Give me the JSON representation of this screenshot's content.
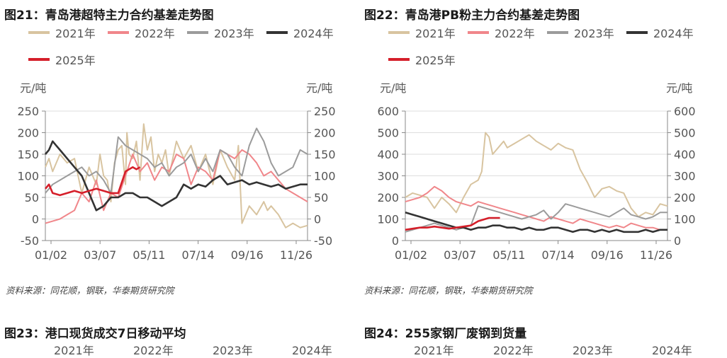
{
  "figures": [
    {
      "title": "图21：青岛港超特主力合约基差走势图",
      "source": "资料来源：同花顺，钢联，华泰期货研究院"
    },
    {
      "title": "图22：青岛港PB粉主力合约基差走势图",
      "source": "资料来源：同花顺，钢联，华泰期货研究院"
    },
    {
      "title": "图23：港口现货成交7日移动平均",
      "source": ""
    },
    {
      "title": "图24：255家钢厂废钢到货量",
      "source": ""
    }
  ],
  "bottom_legend": [
    "2021年",
    "2022年",
    "2023年",
    "2024年"
  ],
  "chart_data": [
    {
      "type": "line",
      "unit_left": "元/吨",
      "unit_right": "元/吨",
      "x_ticks": [
        "01/02",
        "03/07",
        "05/11",
        "07/14",
        "09/16",
        "11/26"
      ],
      "x_range": [
        0,
        360
      ],
      "ylim": [
        -50,
        250
      ],
      "y_ticks": [
        -50,
        0,
        50,
        100,
        150,
        200,
        250
      ],
      "grid": true,
      "legend_position": "top",
      "series": [
        {
          "name": "2021年",
          "color": "#d8c4a0",
          "x": [
            0,
            5,
            10,
            20,
            30,
            40,
            50,
            60,
            70,
            75,
            80,
            85,
            90,
            95,
            100,
            105,
            110,
            112,
            115,
            120,
            125,
            130,
            135,
            140,
            145,
            150,
            155,
            160,
            165,
            170,
            180,
            190,
            200,
            210,
            220,
            230,
            240,
            250,
            260,
            265,
            270,
            280,
            290,
            300,
            305,
            310,
            320,
            330,
            340,
            350,
            360
          ],
          "y": [
            120,
            140,
            110,
            150,
            130,
            140,
            60,
            120,
            80,
            150,
            100,
            90,
            40,
            130,
            160,
            170,
            80,
            200,
            150,
            140,
            180,
            90,
            220,
            160,
            190,
            110,
            150,
            130,
            160,
            100,
            180,
            140,
            170,
            110,
            150,
            80,
            160,
            120,
            90,
            170,
            -10,
            30,
            10,
            40,
            20,
            30,
            10,
            -20,
            -10,
            -20,
            -15
          ]
        },
        {
          "name": "2022年",
          "color": "#f0868a",
          "x": [
            0,
            10,
            20,
            30,
            40,
            50,
            60,
            70,
            80,
            90,
            100,
            110,
            120,
            130,
            140,
            150,
            160,
            170,
            180,
            190,
            200,
            210,
            220,
            230,
            240,
            250,
            260,
            270,
            280,
            290,
            300,
            310,
            320,
            330,
            340,
            350,
            360
          ],
          "y": [
            -10,
            -5,
            0,
            10,
            20,
            60,
            40,
            90,
            20,
            60,
            50,
            100,
            150,
            110,
            130,
            90,
            120,
            110,
            150,
            140,
            80,
            120,
            110,
            90,
            160,
            150,
            140,
            160,
            150,
            130,
            100,
            110,
            90,
            70,
            60,
            50,
            40
          ]
        },
        {
          "name": "2023年",
          "color": "#9b9b9b",
          "x": [
            0,
            10,
            20,
            30,
            40,
            50,
            60,
            70,
            80,
            90,
            100,
            110,
            120,
            130,
            140,
            150,
            160,
            170,
            180,
            190,
            200,
            210,
            220,
            230,
            240,
            250,
            260,
            270,
            280,
            290,
            300,
            310,
            320,
            330,
            340,
            350,
            360
          ],
          "y": [
            60,
            80,
            90,
            100,
            110,
            120,
            100,
            110,
            90,
            60,
            190,
            170,
            160,
            150,
            140,
            120,
            130,
            100,
            120,
            130,
            150,
            110,
            140,
            110,
            160,
            150,
            120,
            100,
            170,
            210,
            180,
            130,
            100,
            110,
            120,
            160,
            150
          ]
        },
        {
          "name": "2024年",
          "color": "#333333",
          "x": [
            0,
            5,
            10,
            15,
            20,
            30,
            40,
            50,
            60,
            70,
            80,
            90,
            100,
            110,
            120,
            130,
            140,
            150,
            160,
            170,
            180,
            190,
            200,
            210,
            220,
            230,
            240,
            250,
            260,
            270,
            280,
            290,
            300,
            310,
            320,
            330,
            340,
            350,
            360
          ],
          "y": [
            150,
            160,
            180,
            170,
            160,
            140,
            120,
            100,
            60,
            20,
            30,
            50,
            50,
            60,
            60,
            50,
            50,
            40,
            30,
            40,
            50,
            80,
            70,
            80,
            75,
            90,
            100,
            80,
            85,
            90,
            80,
            85,
            80,
            75,
            80,
            70,
            75,
            80,
            80
          ]
        },
        {
          "name": "2025年",
          "color": "#d51f2a",
          "x": [
            0,
            5,
            10,
            20,
            30,
            40,
            50,
            60,
            70,
            80,
            90,
            100,
            110,
            115,
            120,
            125,
            130
          ],
          "y": [
            70,
            80,
            60,
            55,
            60,
            65,
            60,
            65,
            70,
            65,
            60,
            60,
            110,
            115,
            120,
            115,
            120
          ]
        }
      ]
    },
    {
      "type": "line",
      "unit_left": "元/吨",
      "unit_right": "元/吨",
      "x_ticks": [
        "01/02",
        "03/07",
        "05/11",
        "07/14",
        "09/16",
        "11/26"
      ],
      "x_range": [
        0,
        360
      ],
      "ylim": [
        0,
        600
      ],
      "y_ticks": [
        0,
        100,
        200,
        300,
        400,
        500,
        600
      ],
      "grid": true,
      "legend_position": "top",
      "series": [
        {
          "name": "2021年",
          "color": "#d8c4a0",
          "x": [
            0,
            10,
            20,
            30,
            40,
            50,
            60,
            70,
            80,
            90,
            100,
            105,
            110,
            115,
            120,
            125,
            130,
            135,
            140,
            150,
            160,
            170,
            180,
            190,
            200,
            210,
            220,
            230,
            240,
            250,
            260,
            270,
            280,
            290,
            300,
            310,
            320,
            330,
            340,
            350,
            360
          ],
          "y": [
            200,
            220,
            210,
            200,
            150,
            200,
            170,
            130,
            200,
            260,
            280,
            320,
            500,
            480,
            400,
            420,
            440,
            460,
            430,
            450,
            470,
            490,
            460,
            440,
            420,
            450,
            430,
            420,
            330,
            270,
            200,
            240,
            250,
            230,
            220,
            150,
            110,
            130,
            120,
            170,
            160
          ]
        },
        {
          "name": "2022年",
          "color": "#f0868a",
          "x": [
            0,
            10,
            20,
            30,
            40,
            50,
            60,
            70,
            80,
            90,
            100,
            110,
            120,
            130,
            140,
            150,
            160,
            170,
            180,
            190,
            200,
            210,
            220,
            230,
            240,
            250,
            260,
            270,
            280,
            290,
            300,
            310,
            320,
            330,
            340,
            350,
            360
          ],
          "y": [
            180,
            190,
            200,
            220,
            250,
            230,
            200,
            180,
            170,
            160,
            180,
            170,
            160,
            150,
            140,
            130,
            120,
            110,
            100,
            90,
            110,
            100,
            90,
            80,
            100,
            90,
            80,
            70,
            60,
            70,
            60,
            80,
            70,
            60,
            60,
            50,
            50
          ]
        },
        {
          "name": "2023年",
          "color": "#9b9b9b",
          "x": [
            0,
            10,
            20,
            30,
            40,
            50,
            60,
            70,
            80,
            90,
            100,
            110,
            120,
            130,
            140,
            150,
            160,
            170,
            180,
            190,
            200,
            210,
            220,
            230,
            240,
            250,
            260,
            270,
            280,
            290,
            300,
            310,
            320,
            330,
            340,
            350,
            360
          ],
          "y": [
            40,
            50,
            60,
            70,
            80,
            70,
            60,
            50,
            60,
            70,
            160,
            150,
            140,
            130,
            120,
            110,
            100,
            110,
            120,
            140,
            100,
            130,
            170,
            160,
            150,
            140,
            130,
            120,
            110,
            130,
            150,
            120,
            110,
            100,
            110,
            130,
            130
          ]
        },
        {
          "name": "2024年",
          "color": "#333333",
          "x": [
            0,
            10,
            20,
            30,
            40,
            50,
            60,
            70,
            80,
            90,
            100,
            110,
            120,
            130,
            140,
            150,
            160,
            170,
            180,
            190,
            200,
            210,
            220,
            230,
            240,
            250,
            260,
            270,
            280,
            290,
            300,
            310,
            320,
            330,
            340,
            350,
            360
          ],
          "y": [
            130,
            120,
            110,
            100,
            90,
            80,
            70,
            60,
            60,
            50,
            60,
            60,
            70,
            70,
            60,
            60,
            50,
            60,
            50,
            50,
            60,
            60,
            50,
            40,
            50,
            50,
            40,
            50,
            40,
            50,
            40,
            40,
            40,
            50,
            40,
            50,
            50
          ]
        },
        {
          "name": "2025年",
          "color": "#d51f2a",
          "x": [
            0,
            10,
            20,
            30,
            40,
            50,
            60,
            70,
            80,
            90,
            100,
            110,
            115,
            120,
            125,
            130
          ],
          "y": [
            50,
            55,
            60,
            60,
            65,
            60,
            55,
            60,
            65,
            70,
            90,
            100,
            105,
            105,
            105,
            105
          ]
        }
      ]
    }
  ]
}
